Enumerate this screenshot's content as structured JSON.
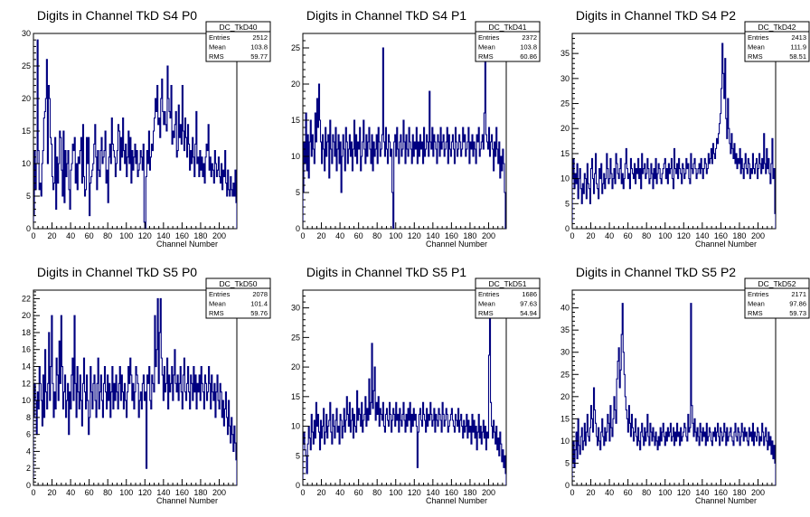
{
  "colors": {
    "line": "#000080",
    "axis": "#000000",
    "background": "#ffffff"
  },
  "chart_data": [
    {
      "type": "bar",
      "title": "Digits in Channel TkD S4 P0",
      "xlabel": "Channel Number",
      "ylabel": "",
      "xlim": [
        0,
        219
      ],
      "ylim": [
        0,
        30
      ],
      "x_ticks": [
        0,
        20,
        40,
        60,
        80,
        100,
        120,
        140,
        160,
        180,
        200
      ],
      "y_ticks": [
        0,
        5,
        10,
        15,
        20,
        25,
        30
      ],
      "stats": {
        "name": "DC_TkD40",
        "entries": "2512",
        "mean": "103.8",
        "rms": "59.77"
      },
      "values": [
        2,
        12,
        6,
        10,
        29,
        12,
        6,
        7,
        5,
        10,
        12,
        17,
        18,
        20,
        26,
        10,
        22,
        20,
        14,
        13,
        8,
        6,
        7,
        14,
        3,
        11,
        7,
        10,
        15,
        14,
        9,
        5,
        15,
        4,
        12,
        8,
        10,
        12,
        6,
        3,
        9,
        10,
        13,
        12,
        14,
        7,
        10,
        6,
        11,
        10,
        12,
        14,
        7,
        16,
        8,
        5,
        6,
        14,
        10,
        14,
        2,
        7,
        8,
        9,
        10,
        13,
        16,
        11,
        6,
        12,
        9,
        8,
        12,
        14,
        10,
        11,
        12,
        15,
        7,
        9,
        4,
        11,
        13,
        10,
        17,
        13,
        12,
        11,
        8,
        10,
        12,
        16,
        15,
        9,
        14,
        11,
        17,
        12,
        10,
        13,
        8,
        11,
        15,
        10,
        14,
        7,
        12,
        9,
        11,
        13,
        10,
        12,
        8,
        9,
        10,
        12,
        11,
        9,
        13,
        1,
        0,
        8,
        12,
        10,
        15,
        9,
        11,
        13,
        12,
        15,
        17,
        20,
        18,
        22,
        16,
        17,
        14,
        20,
        23,
        18,
        16,
        18,
        16,
        15,
        25,
        20,
        18,
        17,
        22,
        13,
        15,
        14,
        16,
        18,
        11,
        12,
        19,
        14,
        16,
        13,
        22,
        15,
        12,
        17,
        14,
        11,
        16,
        13,
        9,
        12,
        10,
        14,
        11,
        8,
        13,
        18,
        10,
        11,
        8,
        12,
        9,
        11,
        8,
        10,
        7,
        11,
        13,
        12,
        16,
        9,
        11,
        8,
        10,
        9,
        7,
        12,
        10,
        8,
        9,
        11,
        8,
        7,
        10,
        6,
        9,
        8,
        12,
        7,
        5,
        9,
        6,
        5,
        8,
        6,
        5,
        7,
        5,
        9,
        4
      ]
    },
    {
      "type": "bar",
      "title": "Digits in Channel TkD S4 P1",
      "xlabel": "Channel Number",
      "ylabel": "",
      "xlim": [
        0,
        219
      ],
      "ylim": [
        0,
        27
      ],
      "x_ticks": [
        0,
        20,
        40,
        60,
        80,
        100,
        120,
        140,
        160,
        180,
        200
      ],
      "y_ticks": [
        0,
        5,
        10,
        15,
        20,
        25
      ],
      "stats": {
        "name": "DC_TkD41",
        "entries": "2372",
        "mean": "103.8",
        "rms": "60.86"
      },
      "values": [
        5,
        12,
        9,
        16,
        8,
        13,
        7,
        12,
        15,
        10,
        13,
        11,
        9,
        16,
        12,
        18,
        14,
        20,
        15,
        12,
        9,
        13,
        11,
        8,
        14,
        10,
        12,
        13,
        7,
        15,
        11,
        9,
        13,
        12,
        10,
        14,
        8,
        11,
        13,
        9,
        12,
        5,
        10,
        13,
        11,
        8,
        14,
        12,
        9,
        11,
        13,
        10,
        12,
        8,
        11,
        15,
        10,
        13,
        9,
        12,
        11,
        14,
        8,
        10,
        12,
        15,
        11,
        9,
        13,
        10,
        12,
        14,
        11,
        9,
        13,
        8,
        12,
        10,
        11,
        13,
        9,
        14,
        12,
        10,
        11,
        13,
        25,
        12,
        10,
        14,
        11,
        9,
        13,
        12,
        10,
        11,
        5,
        0,
        12,
        13,
        10,
        14,
        11,
        9,
        12,
        13,
        10,
        11,
        15,
        12,
        9,
        13,
        11,
        10,
        14,
        12,
        11,
        9,
        13,
        10,
        12,
        11,
        14,
        9,
        12,
        10,
        13,
        11,
        12,
        9,
        14,
        10,
        11,
        13,
        12,
        10,
        19,
        12,
        11,
        14,
        10,
        13,
        12,
        11,
        9,
        13,
        12,
        10,
        14,
        11,
        12,
        13,
        10,
        11,
        12,
        14,
        9,
        13,
        11,
        10,
        12,
        13,
        11,
        9,
        14,
        12,
        10,
        11,
        13,
        12,
        10,
        11,
        14,
        12,
        13,
        10,
        11,
        12,
        14,
        9,
        12,
        11,
        13,
        10,
        12,
        11,
        9,
        13,
        12,
        14,
        10,
        11,
        12,
        13,
        11,
        16,
        24,
        13,
        12,
        11,
        14,
        10,
        12,
        13,
        11,
        8,
        12,
        10,
        14,
        11,
        9,
        12,
        7,
        10,
        8,
        11,
        9,
        5,
        0
      ]
    },
    {
      "type": "bar",
      "title": "Digits in Channel TkD S4 P2",
      "xlabel": "Channel Number",
      "ylabel": "",
      "xlim": [
        0,
        219
      ],
      "ylim": [
        0,
        39
      ],
      "x_ticks": [
        0,
        20,
        40,
        60,
        80,
        100,
        120,
        140,
        160,
        180,
        200
      ],
      "y_ticks": [
        0,
        5,
        10,
        15,
        20,
        25,
        30,
        35
      ],
      "stats": {
        "name": "DC_TkD42",
        "entries": "2413",
        "mean": "111.9",
        "rms": "58.51"
      },
      "values": [
        10,
        14,
        8,
        11,
        9,
        13,
        6,
        10,
        12,
        8,
        5,
        9,
        7,
        11,
        10,
        6,
        13,
        9,
        8,
        5,
        12,
        14,
        10,
        7,
        11,
        15,
        9,
        8,
        6,
        12,
        10,
        13,
        7,
        9,
        11,
        8,
        10,
        15,
        12,
        9,
        10,
        14,
        11,
        8,
        10,
        12,
        9,
        15,
        13,
        11,
        10,
        12,
        14,
        9,
        11,
        8,
        10,
        13,
        16,
        12,
        10,
        11,
        8,
        14,
        12,
        11,
        10,
        13,
        9,
        12,
        11,
        14,
        10,
        12,
        8,
        15,
        11,
        12,
        13,
        10,
        11,
        14,
        12,
        9,
        10,
        13,
        11,
        8,
        12,
        10,
        14,
        9,
        11,
        13,
        12,
        10,
        9,
        11,
        12,
        13,
        14,
        10,
        12,
        9,
        13,
        11,
        12,
        14,
        10,
        8,
        16,
        12,
        11,
        13,
        10,
        14,
        12,
        11,
        9,
        13,
        12,
        10,
        11,
        14,
        12,
        13,
        10,
        9,
        15,
        12,
        11,
        13,
        14,
        12,
        10,
        11,
        12,
        13,
        11,
        14,
        12,
        10,
        12,
        14,
        13,
        11,
        12,
        15,
        13,
        14,
        16,
        13,
        17,
        15,
        14,
        16,
        18,
        17,
        19,
        21,
        23,
        28,
        37,
        31,
        26,
        34,
        22,
        18,
        26,
        20,
        17,
        15,
        19,
        16,
        14,
        17,
        13,
        15,
        12,
        14,
        13,
        16,
        11,
        14,
        12,
        10,
        13,
        15,
        12,
        11,
        14,
        13,
        10,
        12,
        11,
        15,
        12,
        11,
        13,
        14,
        10,
        12,
        15,
        13,
        11,
        14,
        12,
        19,
        13,
        11,
        16,
        12,
        14,
        11,
        9,
        13,
        18,
        10,
        12,
        3
      ]
    },
    {
      "type": "bar",
      "title": "Digits in Channel TkD S5 P0",
      "xlabel": "Channel Number",
      "ylabel": "",
      "xlim": [
        0,
        219
      ],
      "ylim": [
        0,
        23
      ],
      "x_ticks": [
        0,
        20,
        40,
        60,
        80,
        100,
        120,
        140,
        160,
        180,
        200
      ],
      "y_ticks": [
        0,
        2,
        4,
        6,
        8,
        10,
        12,
        14,
        16,
        18,
        20,
        22
      ],
      "stats": {
        "name": "DC_TkD50",
        "entries": "2078",
        "mean": "101.4",
        "rms": "59.76"
      },
      "values": [
        8,
        12,
        10,
        6,
        11,
        9,
        14,
        12,
        10,
        7,
        13,
        8,
        16,
        11,
        9,
        12,
        18,
        10,
        14,
        20,
        12,
        8,
        11,
        9,
        15,
        13,
        10,
        17,
        12,
        20,
        14,
        9,
        11,
        13,
        8,
        10,
        12,
        6,
        11,
        9,
        13,
        15,
        10,
        20,
        12,
        8,
        14,
        11,
        9,
        13,
        10,
        7,
        12,
        15,
        11,
        9,
        13,
        10,
        6,
        8,
        14,
        11,
        9,
        12,
        13,
        10,
        8,
        12,
        15,
        9,
        11,
        13,
        10,
        8,
        12,
        14,
        11,
        9,
        13,
        10,
        12,
        8,
        11,
        14,
        9,
        12,
        10,
        13,
        11,
        9,
        12,
        14,
        10,
        13,
        11,
        9,
        12,
        10,
        8,
        11,
        14,
        12,
        15,
        13,
        10,
        12,
        9,
        11,
        14,
        13,
        12,
        8,
        10,
        11,
        9,
        12,
        13,
        10,
        11,
        2,
        13,
        12,
        14,
        10,
        9,
        13,
        12,
        11,
        20,
        14,
        16,
        22,
        12,
        18,
        22,
        15,
        13,
        10,
        14,
        11,
        12,
        15,
        9,
        13,
        11,
        12,
        14,
        10,
        13,
        16,
        12,
        11,
        13,
        10,
        12,
        14,
        11,
        9,
        13,
        15,
        11,
        10,
        12,
        14,
        11,
        9,
        13,
        12,
        10,
        14,
        11,
        13,
        9,
        12,
        11,
        13,
        10,
        14,
        12,
        11,
        9,
        13,
        12,
        10,
        11,
        14,
        12,
        9,
        13,
        11,
        10,
        12,
        8,
        11,
        13,
        10,
        9,
        12,
        11,
        8,
        10,
        7,
        9,
        11,
        8,
        6,
        10,
        7,
        5,
        8,
        6,
        4,
        7,
        5,
        3
      ]
    },
    {
      "type": "bar",
      "title": "Digits in Channel TkD S5 P1",
      "xlabel": "Channel Number",
      "ylabel": "",
      "xlim": [
        0,
        219
      ],
      "ylim": [
        0,
        33
      ],
      "x_ticks": [
        0,
        20,
        40,
        60,
        80,
        100,
        120,
        140,
        160,
        180,
        200
      ],
      "y_ticks": [
        0,
        5,
        10,
        15,
        20,
        25,
        30
      ],
      "stats": {
        "name": "DC_TkD51",
        "entries": "1686",
        "mean": "97.63",
        "rms": "54.94"
      },
      "values": [
        7,
        9,
        6,
        5,
        2,
        7,
        10,
        8,
        6,
        12,
        9,
        7,
        11,
        8,
        14,
        10,
        12,
        9,
        6,
        11,
        8,
        10,
        13,
        7,
        9,
        12,
        8,
        10,
        11,
        14,
        9,
        7,
        12,
        10,
        8,
        11,
        13,
        9,
        10,
        7,
        12,
        11,
        8,
        10,
        13,
        9,
        11,
        15,
        12,
        10,
        14,
        9,
        11,
        13,
        8,
        12,
        10,
        9,
        16,
        11,
        13,
        12,
        10,
        14,
        9,
        11,
        12,
        15,
        10,
        13,
        11,
        18,
        12,
        14,
        24,
        13,
        16,
        20,
        11,
        14,
        12,
        15,
        10,
        13,
        12,
        11,
        14,
        10,
        9,
        12,
        13,
        11,
        10,
        14,
        12,
        9,
        11,
        13,
        12,
        10,
        14,
        11,
        12,
        9,
        13,
        11,
        10,
        12,
        14,
        11,
        9,
        12,
        10,
        13,
        11,
        14,
        9,
        12,
        10,
        13,
        11,
        12,
        10,
        3,
        9,
        12,
        13,
        11,
        10,
        14,
        12,
        11,
        9,
        13,
        10,
        12,
        11,
        14,
        12,
        10,
        11,
        13,
        9,
        12,
        11,
        10,
        13,
        12,
        11,
        9,
        14,
        12,
        10,
        11,
        13,
        12,
        9,
        10,
        11,
        12,
        13,
        11,
        10,
        9,
        12,
        11,
        10,
        13,
        9,
        11,
        12,
        10,
        8,
        11,
        9,
        10,
        12,
        8,
        11,
        9,
        10,
        7,
        12,
        9,
        11,
        8,
        10,
        6,
        9,
        12,
        8,
        10,
        7,
        9,
        11,
        8,
        10,
        6,
        9,
        8,
        22,
        30,
        14,
        10,
        8,
        11,
        9,
        7,
        10,
        6,
        8,
        5,
        9,
        7,
        4,
        6,
        3,
        5,
        2
      ]
    },
    {
      "type": "bar",
      "title": "Digits in Channel TkD S5 P2",
      "xlabel": "Channel Number",
      "ylabel": "",
      "xlim": [
        0,
        219
      ],
      "ylim": [
        0,
        44
      ],
      "x_ticks": [
        0,
        20,
        40,
        60,
        80,
        100,
        120,
        140,
        160,
        180,
        200
      ],
      "y_ticks": [
        0,
        5,
        10,
        15,
        20,
        25,
        30,
        35,
        40
      ],
      "stats": {
        "name": "DC_TkD52",
        "entries": "2171",
        "mean": "97.86",
        "rms": "59.73"
      },
      "values": [
        5,
        10,
        4,
        8,
        12,
        6,
        15,
        9,
        7,
        11,
        13,
        8,
        10,
        14,
        9,
        12,
        16,
        11,
        10,
        13,
        18,
        15,
        12,
        22,
        17,
        14,
        11,
        9,
        13,
        10,
        8,
        12,
        15,
        11,
        9,
        13,
        10,
        12,
        16,
        14,
        10,
        18,
        13,
        11,
        15,
        20,
        17,
        14,
        24,
        28,
        31,
        22,
        26,
        34,
        41,
        30,
        25,
        20,
        17,
        15,
        12,
        18,
        14,
        11,
        16,
        13,
        10,
        12,
        15,
        11,
        9,
        13,
        10,
        8,
        12,
        14,
        11,
        9,
        13,
        10,
        12,
        16,
        11,
        9,
        14,
        12,
        10,
        13,
        11,
        9,
        12,
        10,
        8,
        11,
        9,
        13,
        10,
        12,
        14,
        11,
        9,
        12,
        10,
        13,
        11,
        12,
        14,
        10,
        11,
        13,
        9,
        12,
        10,
        14,
        11,
        12,
        9,
        13,
        10,
        11,
        12,
        14,
        13,
        11,
        10,
        16,
        12,
        13,
        41,
        18,
        14,
        11,
        15,
        12,
        10,
        13,
        11,
        9,
        14,
        12,
        10,
        13,
        11,
        12,
        9,
        14,
        10,
        11,
        13,
        12,
        10,
        9,
        12,
        11,
        13,
        10,
        12,
        14,
        11,
        9,
        13,
        12,
        10,
        11,
        14,
        12,
        9,
        13,
        10,
        11,
        12,
        13,
        11,
        10,
        9,
        12,
        14,
        11,
        10,
        13,
        12,
        9,
        11,
        14,
        12,
        10,
        13,
        11,
        12,
        10,
        9,
        13,
        11,
        12,
        10,
        14,
        9,
        12,
        11,
        10,
        13,
        12,
        9,
        11,
        10,
        14,
        12,
        9,
        11,
        13,
        10,
        8,
        12,
        9,
        11,
        7,
        10,
        6,
        9,
        5
      ]
    }
  ]
}
